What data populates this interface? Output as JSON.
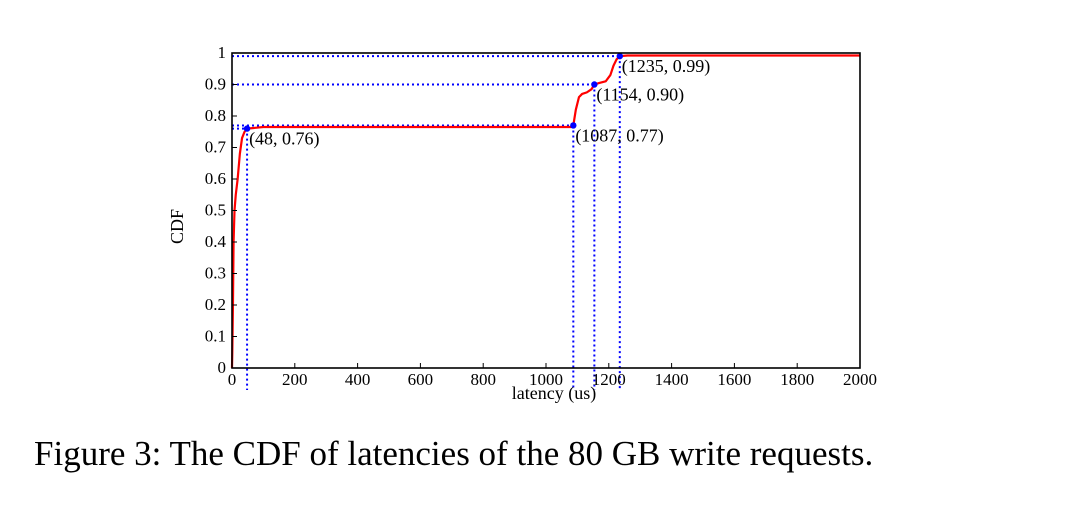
{
  "caption": "Figure 3: The CDF of latencies of the 80 GB write requests.",
  "chart_data": {
    "type": "line",
    "xlabel": "latency (us)",
    "ylabel": "CDF",
    "xlim": [
      0,
      2000
    ],
    "ylim": [
      0,
      1
    ],
    "x_ticks": [
      0,
      200,
      400,
      600,
      800,
      1000,
      1200,
      1400,
      1600,
      1800,
      2000
    ],
    "y_ticks": [
      "0",
      "0.1",
      "0.2",
      "0.3",
      "0.4",
      "0.5",
      "0.6",
      "0.7",
      "0.8",
      "0.9",
      "1"
    ],
    "grid": false,
    "series": [
      {
        "color": "#ff0000",
        "x": [
          0,
          1,
          3,
          5,
          8,
          12,
          18,
          25,
          32,
          40,
          48,
          100,
          300,
          600,
          900,
          1080,
          1087,
          1095,
          1105,
          1115,
          1130,
          1145,
          1154,
          1170,
          1190,
          1205,
          1215,
          1225,
          1235,
          1260,
          1400,
          2000
        ],
        "y": [
          0,
          0.05,
          0.2,
          0.4,
          0.5,
          0.55,
          0.6,
          0.68,
          0.73,
          0.75,
          0.76,
          0.765,
          0.765,
          0.765,
          0.765,
          0.765,
          0.77,
          0.82,
          0.86,
          0.87,
          0.875,
          0.885,
          0.9,
          0.905,
          0.91,
          0.93,
          0.96,
          0.98,
          0.99,
          0.992,
          0.992,
          0.992
        ]
      }
    ],
    "markers": [
      {
        "x": 48,
        "y": 0.76,
        "label": "(48, 0.76)"
      },
      {
        "x": 1087,
        "y": 0.77,
        "label": "(1087, 0.77)"
      },
      {
        "x": 1154,
        "y": 0.9,
        "label": "(1154, 0.90)"
      },
      {
        "x": 1235,
        "y": 0.99,
        "label": "(1235, 0.99)"
      }
    ],
    "reference_line_color": "#0000ff",
    "marker_color": "#0000ff"
  }
}
